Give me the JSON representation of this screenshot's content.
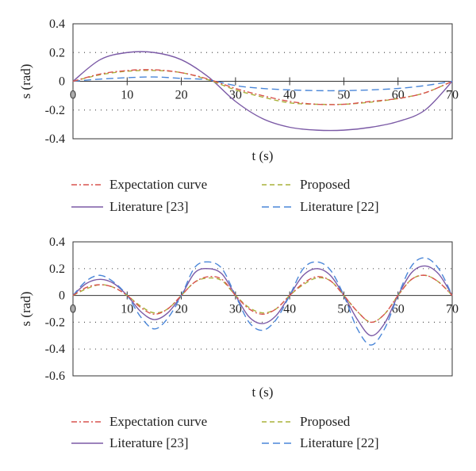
{
  "chart_data": [
    {
      "type": "line",
      "xlabel": "t (s)",
      "ylabel": "s (rad)",
      "xlim": [
        0,
        70
      ],
      "ylim": [
        -0.4,
        0.4
      ],
      "xticks": [
        "0",
        "10",
        "20",
        "30",
        "40",
        "50",
        "60",
        "70"
      ],
      "yticks": [
        "0.4",
        "0.2",
        "0",
        "-0.2",
        "-0.4"
      ],
      "grid": "horizontal dotted",
      "legend_position": "below",
      "x": [
        0,
        5,
        10,
        15,
        20,
        25,
        30,
        35,
        40,
        45,
        50,
        55,
        60,
        65,
        70
      ],
      "series": [
        {
          "name": "Expectation curve",
          "color": "#d9534f",
          "dash": "7,3,2,3",
          "values": [
            0,
            0.05,
            0.075,
            0.08,
            0.06,
            0.015,
            -0.05,
            -0.1,
            -0.14,
            -0.16,
            -0.16,
            -0.14,
            -0.12,
            -0.08,
            0
          ]
        },
        {
          "name": "Proposed",
          "color": "#a9b23a",
          "dash": "6,4",
          "values": [
            0,
            0.045,
            0.07,
            0.075,
            0.06,
            0.01,
            -0.06,
            -0.11,
            -0.15,
            -0.16,
            -0.16,
            -0.145,
            -0.12,
            -0.08,
            0
          ]
        },
        {
          "name": "Literature [23]",
          "color": "#7b5aa6",
          "dash": "",
          "values": [
            0,
            0.15,
            0.2,
            0.2,
            0.15,
            0.03,
            -0.14,
            -0.26,
            -0.32,
            -0.34,
            -0.34,
            -0.32,
            -0.28,
            -0.2,
            0
          ]
        },
        {
          "name": "Literature [22]",
          "color": "#4a86d8",
          "dash": "9,5",
          "values": [
            0,
            0.015,
            0.025,
            0.03,
            0.02,
            0.01,
            -0.03,
            -0.05,
            -0.06,
            -0.065,
            -0.065,
            -0.06,
            -0.05,
            -0.03,
            0
          ]
        }
      ]
    },
    {
      "type": "line",
      "xlabel": "t (s)",
      "ylabel": "s (rad)",
      "xlim": [
        0,
        70
      ],
      "ylim": [
        -0.6,
        0.4
      ],
      "xticks": [
        "0",
        "10",
        "20",
        "30",
        "40",
        "50",
        "60",
        "70"
      ],
      "yticks": [
        "0.4",
        "0.2",
        "0",
        "-0.2",
        "-0.4",
        "-0.6"
      ],
      "grid": "horizontal dotted",
      "legend_position": "below",
      "x": [
        0,
        2.5,
        5,
        7.5,
        10,
        12.5,
        15,
        17.5,
        20,
        22.5,
        25,
        27.5,
        30,
        32.5,
        35,
        37.5,
        40,
        42.5,
        45,
        47.5,
        50,
        52.5,
        55,
        57.5,
        60,
        62.5,
        65,
        67.5,
        70
      ],
      "series": [
        {
          "name": "Expectation curve",
          "color": "#d9534f",
          "dash": "7,3,2,3",
          "values": [
            0,
            0.06,
            0.08,
            0.06,
            0,
            -0.09,
            -0.14,
            -0.1,
            0,
            0.1,
            0.14,
            0.12,
            0,
            -0.1,
            -0.14,
            -0.1,
            0,
            0.09,
            0.14,
            0.11,
            0,
            -0.12,
            -0.2,
            -0.14,
            0,
            0.12,
            0.15,
            0.1,
            0
          ]
        },
        {
          "name": "Proposed",
          "color": "#a9b23a",
          "dash": "6,4",
          "values": [
            0,
            0.05,
            0.08,
            0.06,
            0,
            -0.08,
            -0.13,
            -0.1,
            0,
            0.1,
            0.13,
            0.11,
            0,
            -0.09,
            -0.13,
            -0.1,
            0,
            0.08,
            0.13,
            0.11,
            0,
            -0.12,
            -0.2,
            -0.14,
            0,
            0.12,
            0.15,
            0.1,
            0
          ]
        },
        {
          "name": "Literature [23]",
          "color": "#7b5aa6",
          "dash": "",
          "values": [
            0,
            0.09,
            0.12,
            0.09,
            0,
            -0.12,
            -0.18,
            -0.13,
            0,
            0.17,
            0.2,
            0.16,
            0,
            -0.16,
            -0.21,
            -0.15,
            0,
            0.15,
            0.2,
            0.15,
            0,
            -0.18,
            -0.3,
            -0.21,
            0,
            0.17,
            0.22,
            0.16,
            0
          ]
        },
        {
          "name": "Literature [22]",
          "color": "#4a86d8",
          "dash": "9,5",
          "values": [
            0,
            0.11,
            0.15,
            0.1,
            0,
            -0.16,
            -0.25,
            -0.17,
            0,
            0.21,
            0.25,
            0.2,
            0,
            -0.2,
            -0.26,
            -0.18,
            0,
            0.2,
            0.25,
            0.19,
            0,
            -0.25,
            -0.37,
            -0.25,
            0,
            0.22,
            0.28,
            0.2,
            0
          ]
        }
      ]
    }
  ]
}
